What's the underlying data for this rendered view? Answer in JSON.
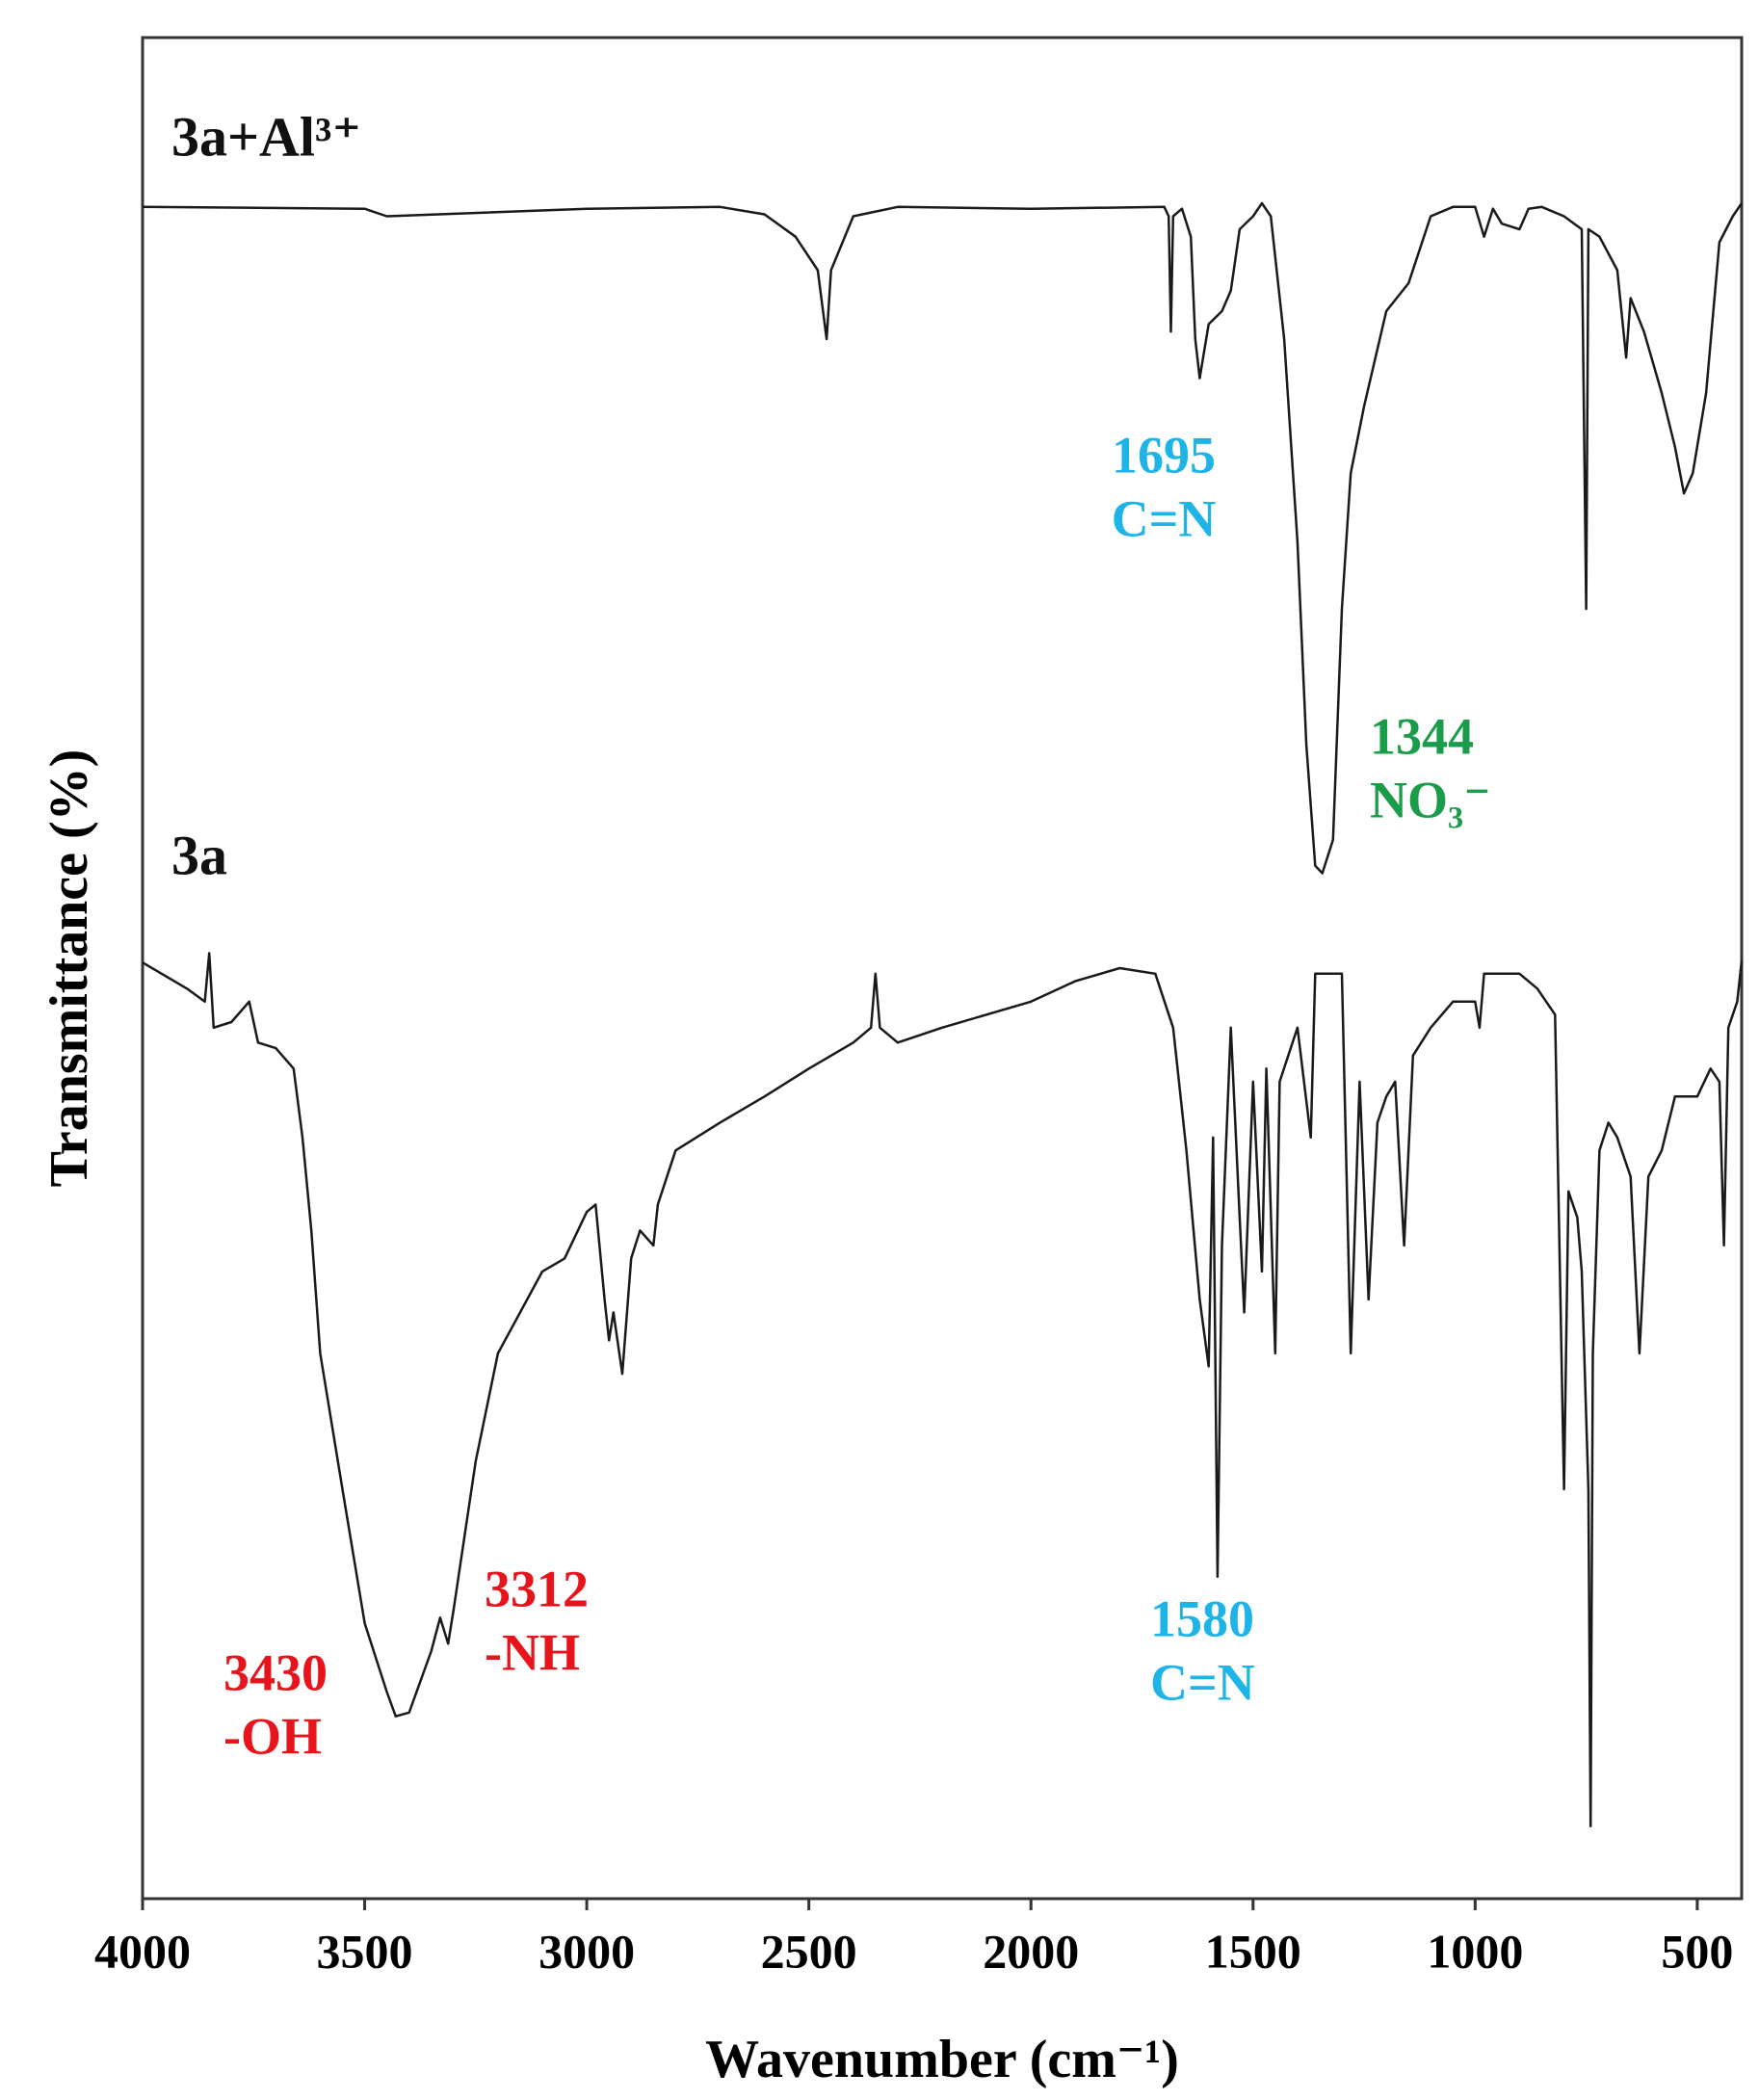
{
  "chart_data": {
    "type": "line",
    "xlabel": "Wavenumber (cm⁻¹)",
    "ylabel": "Transmittance (%)",
    "xlim": [
      4000,
      400
    ],
    "ylim": [
      0,
      100
    ],
    "xticks": [
      4000,
      3500,
      3000,
      2500,
      2000,
      1500,
      1000,
      500
    ],
    "series": [
      {
        "name": "3a+Al³⁺",
        "color": "#1a1a1a",
        "x": [
          4000,
          3500,
          3450,
          3000,
          2700,
          2600,
          2530,
          2480,
          2460,
          2450,
          2400,
          2300,
          2000,
          1700,
          1690,
          1685,
          1680,
          1660,
          1640,
          1630,
          1620,
          1600,
          1570,
          1550,
          1530,
          1500,
          1480,
          1460,
          1430,
          1400,
          1380,
          1360,
          1344,
          1320,
          1300,
          1280,
          1250,
          1200,
          1150,
          1100,
          1050,
          1000,
          980,
          960,
          940,
          900,
          880,
          850,
          800,
          760,
          750,
          745,
          720,
          680,
          660,
          650,
          620,
          580,
          550,
          530,
          510,
          480,
          450,
          420,
          400
        ],
        "values": [
          90.9,
          90.8,
          90.4,
          90.8,
          90.9,
          90.5,
          89.3,
          87.5,
          83.8,
          87.5,
          90.4,
          90.9,
          90.8,
          90.9,
          90.4,
          84.2,
          90.4,
          90.8,
          89.3,
          83.8,
          81.7,
          84.6,
          85.3,
          86.4,
          89.7,
          90.4,
          91.1,
          90.4,
          83.8,
          72.9,
          62.0,
          55.5,
          55.1,
          56.9,
          69.3,
          76.6,
          80.2,
          85.3,
          86.8,
          90.4,
          90.9,
          90.9,
          89.3,
          90.8,
          90.0,
          89.7,
          90.8,
          90.9,
          90.4,
          89.7,
          69.3,
          89.7,
          89.3,
          87.5,
          82.8,
          86.0,
          84.2,
          80.9,
          78.0,
          75.5,
          76.6,
          80.9,
          89.0,
          90.4,
          91.1
        ]
      },
      {
        "name": "3a",
        "color": "#1a1a1a",
        "x": [
          4000,
          3900,
          3860,
          3850,
          3840,
          3800,
          3760,
          3740,
          3700,
          3660,
          3640,
          3620,
          3600,
          3550,
          3500,
          3450,
          3430,
          3400,
          3350,
          3330,
          3312,
          3300,
          3250,
          3200,
          3100,
          3050,
          3000,
          2980,
          2960,
          2950,
          2940,
          2920,
          2900,
          2880,
          2850,
          2840,
          2800,
          2700,
          2600,
          2500,
          2400,
          2360,
          2350,
          2340,
          2300,
          2200,
          2000,
          1900,
          1800,
          1720,
          1680,
          1650,
          1620,
          1600,
          1590,
          1580,
          1570,
          1550,
          1530,
          1520,
          1500,
          1480,
          1470,
          1450,
          1440,
          1400,
          1370,
          1360,
          1320,
          1300,
          1280,
          1260,
          1240,
          1220,
          1200,
          1180,
          1160,
          1140,
          1100,
          1050,
          1000,
          990,
          980,
          950,
          900,
          860,
          820,
          800,
          790,
          770,
          760,
          745,
          740,
          735,
          720,
          700,
          680,
          650,
          630,
          610,
          580,
          550,
          500,
          470,
          450,
          440,
          430,
          410,
          400
        ],
        "values": [
          50.3,
          48.9,
          48.2,
          50.8,
          46.8,
          47.1,
          48.2,
          46.0,
          45.7,
          44.6,
          40.9,
          35.9,
          29.3,
          22.0,
          14.8,
          11.1,
          9.8,
          10.0,
          13.3,
          15.1,
          13.7,
          15.5,
          23.5,
          29.3,
          33.7,
          34.4,
          36.9,
          37.3,
          32.2,
          30.0,
          31.5,
          28.2,
          34.4,
          35.9,
          35.1,
          37.3,
          40.2,
          41.7,
          43.1,
          44.6,
          46.0,
          46.8,
          49.7,
          46.8,
          46.0,
          46.8,
          48.2,
          49.3,
          50.0,
          49.7,
          46.8,
          40.2,
          32.2,
          28.6,
          40.9,
          17.3,
          35.1,
          46.8,
          36.6,
          31.5,
          43.9,
          33.7,
          44.6,
          29.3,
          43.9,
          46.8,
          40.9,
          49.7,
          49.7,
          49.7,
          29.3,
          43.9,
          32.2,
          41.7,
          43.1,
          43.9,
          35.1,
          45.3,
          46.8,
          48.2,
          48.2,
          46.8,
          49.7,
          49.7,
          49.7,
          48.9,
          47.5,
          22.0,
          38.0,
          36.6,
          33.7,
          22.0,
          3.9,
          29.3,
          40.2,
          41.7,
          40.9,
          38.8,
          29.3,
          38.8,
          40.2,
          43.1,
          43.1,
          44.6,
          43.9,
          35.1,
          46.8,
          48.2,
          50.4
        ]
      }
    ],
    "annotations": [
      {
        "lines": [
          "1695",
          "C=N"
        ],
        "color": "#1fb4e8"
      },
      {
        "lines": [
          "1344",
          "NO₃⁻"
        ],
        "color": "#1a9c4a"
      },
      {
        "lines": [
          "3430",
          "-OH"
        ],
        "color": "#e8141c"
      },
      {
        "lines": [
          "3312",
          "-NH"
        ],
        "color": "#e8141c"
      },
      {
        "lines": [
          "1580",
          "C=N"
        ],
        "color": "#1fb4e8"
      }
    ]
  }
}
